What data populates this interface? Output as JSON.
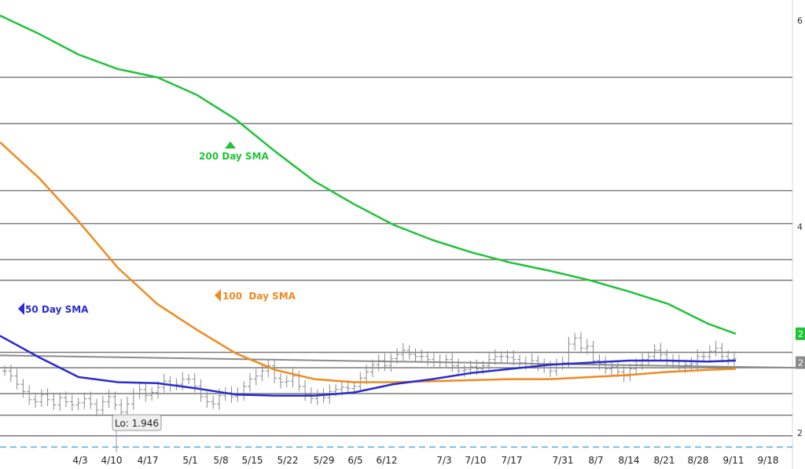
{
  "chart_data": {
    "type": "line",
    "title": "",
    "x_tick_labels": [
      "4/3",
      "4/10",
      "4/17",
      "5/1",
      "5/8",
      "5/15",
      "5/22",
      "5/29",
      "6/5",
      "6/12",
      "7/3",
      "7/10",
      "7/17",
      "7/31",
      "8/7",
      "8/14",
      "8/21",
      "8/28",
      "9/11",
      "9/18"
    ],
    "y_tick_labels": [
      "6",
      "4",
      "2"
    ],
    "ylim": [
      1.8,
      6.2
    ],
    "grid": false,
    "horizontal_levels": [
      5.45,
      5.0,
      4.35,
      4.03,
      3.68,
      3.48,
      2.78,
      2.63,
      2.38,
      2.17,
      1.97
    ],
    "dashed_level": 1.86,
    "trendline": {
      "from": [
        0,
        2.75
      ],
      "to": [
        1,
        2.63
      ]
    },
    "series": [
      {
        "name": "200 Day SMA",
        "color": "#22c23a",
        "label": "200 Day SMA",
        "label_marker": "triangle-up",
        "x": [
          0,
          0.05,
          0.1,
          0.15,
          0.2,
          0.25,
          0.3,
          0.35,
          0.4,
          0.45,
          0.5,
          0.55,
          0.6,
          0.65,
          0.7,
          0.75,
          0.8,
          0.85,
          0.9,
          0.936
        ],
        "y": [
          6.05,
          5.87,
          5.67,
          5.53,
          5.45,
          5.28,
          5.04,
          4.73,
          4.44,
          4.22,
          4.02,
          3.87,
          3.75,
          3.65,
          3.57,
          3.48,
          3.37,
          3.25,
          3.06,
          2.96
        ]
      },
      {
        "name": "100 Day SMA",
        "color": "#f08a20",
        "label": "100  Day SMA",
        "label_marker": "triangle-left",
        "x": [
          0,
          0.05,
          0.1,
          0.15,
          0.2,
          0.25,
          0.3,
          0.35,
          0.4,
          0.45,
          0.5,
          0.55,
          0.6,
          0.65,
          0.7,
          0.75,
          0.8,
          0.85,
          0.9,
          0.936
        ],
        "y": [
          4.82,
          4.47,
          4.05,
          3.6,
          3.25,
          3.0,
          2.77,
          2.61,
          2.52,
          2.49,
          2.49,
          2.5,
          2.51,
          2.52,
          2.52,
          2.54,
          2.56,
          2.59,
          2.61,
          2.62
        ]
      },
      {
        "name": "50 Day SMA",
        "color": "#2a2ad2",
        "label": "50 Day SMA",
        "label_marker": "triangle-left",
        "x": [
          0,
          0.05,
          0.1,
          0.15,
          0.2,
          0.25,
          0.3,
          0.35,
          0.4,
          0.45,
          0.5,
          0.55,
          0.6,
          0.65,
          0.7,
          0.75,
          0.8,
          0.85,
          0.9,
          0.936
        ],
        "y": [
          2.94,
          2.73,
          2.54,
          2.49,
          2.48,
          2.43,
          2.37,
          2.36,
          2.36,
          2.39,
          2.47,
          2.52,
          2.58,
          2.62,
          2.66,
          2.68,
          2.7,
          2.7,
          2.69,
          2.7
        ]
      }
    ],
    "price_bars": {
      "color": "#8a8a8a",
      "values": [
        2.6,
        2.55,
        2.47,
        2.4,
        2.32,
        2.3,
        2.37,
        2.32,
        2.27,
        2.34,
        2.3,
        2.27,
        2.29,
        2.33,
        2.28,
        2.22,
        2.3,
        2.35,
        2.27,
        2.2,
        2.28,
        2.38,
        2.42,
        2.36,
        2.39,
        2.44,
        2.5,
        2.46,
        2.47,
        2.52,
        2.52,
        2.45,
        2.35,
        2.3,
        2.28,
        2.36,
        2.39,
        2.35,
        2.37,
        2.45,
        2.52,
        2.55,
        2.6,
        2.65,
        2.53,
        2.49,
        2.5,
        2.55,
        2.45,
        2.37,
        2.33,
        2.37,
        2.34,
        2.4,
        2.42,
        2.44,
        2.43,
        2.45,
        2.53,
        2.59,
        2.66,
        2.7,
        2.65,
        2.72,
        2.76,
        2.8,
        2.76,
        2.74,
        2.74,
        2.71,
        2.69,
        2.68,
        2.71,
        2.65,
        2.6,
        2.61,
        2.64,
        2.62,
        2.65,
        2.71,
        2.74,
        2.74,
        2.73,
        2.71,
        2.68,
        2.67,
        2.7,
        2.66,
        2.63,
        2.6,
        2.67,
        2.68,
        2.86,
        2.92,
        2.82,
        2.84,
        2.7,
        2.67,
        2.62,
        2.64,
        2.59,
        2.55,
        2.62,
        2.66,
        2.71,
        2.74,
        2.8,
        2.76,
        2.7,
        2.69,
        2.64,
        2.66,
        2.67,
        2.74,
        2.74,
        2.79,
        2.82,
        2.74,
        2.71,
        2.72
      ]
    },
    "annotations": [
      {
        "text": "Lo: 1.946",
        "value": 1.946
      }
    ],
    "right_axis_badges": [
      {
        "text": "2",
        "color": "#22c23a"
      },
      {
        "text": "2",
        "color": "#8c8c8c"
      }
    ]
  }
}
